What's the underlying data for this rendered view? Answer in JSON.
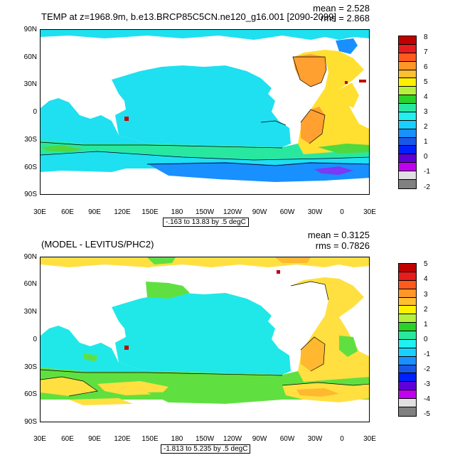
{
  "panel1": {
    "title": "TEMP at z=1968.9m, b.e13.BRCP85C5CN.ne120_g16.001 [2090-2099]",
    "mean": "mean = 2.528",
    "rms": "rms = 2.868",
    "range": "-.163 to 13.83 by .5 degC",
    "colorbar": {
      "labels": [
        "8",
        "7",
        "6",
        "5",
        "4",
        "3",
        "2",
        "1",
        "0",
        "-1",
        "-2"
      ],
      "colors": [
        "#c00000",
        "#e81c1c",
        "#ff5a1e",
        "#ff9628",
        "#ffc030",
        "#fff000",
        "#b4f03c",
        "#28d228",
        "#28e8a0",
        "#20f0f0",
        "#18d0ff",
        "#1890ff",
        "#1858e8",
        "#0020ff",
        "#6000d8",
        "#c000f0",
        "#e0e0e0",
        "#808080"
      ]
    }
  },
  "panel2": {
    "title": "(MODEL - LEVITUS/PHC2)",
    "mean": "mean = 0.3125",
    "rms": "rms = 0.7826",
    "range": "-1.813 to 5.235 by .5 degC",
    "colorbar": {
      "labels": [
        "5",
        "4",
        "3",
        "2",
        "1",
        "0",
        "-1",
        "-2",
        "-3",
        "-4",
        "-5"
      ],
      "colors": [
        "#c00000",
        "#e81c1c",
        "#ff5a1e",
        "#ff9628",
        "#ffc030",
        "#fff000",
        "#b4f03c",
        "#28d228",
        "#28e8a0",
        "#20f0f0",
        "#18d0ff",
        "#1890ff",
        "#1858e8",
        "#0020ff",
        "#6000d8",
        "#c000f0",
        "#e0e0e0",
        "#808080"
      ]
    }
  },
  "axes": {
    "lat_labels": [
      "90N",
      "60N",
      "30N",
      "0",
      "30S",
      "60S",
      "90S"
    ],
    "lon_labels": [
      "30E",
      "60E",
      "90E",
      "120E",
      "150E",
      "180",
      "150W",
      "120W",
      "90W",
      "60W",
      "30W",
      "0",
      "30E"
    ]
  },
  "map_colors": {
    "land": "#ffffff",
    "p1_main": "#1ee0f0",
    "p1_cool": "#28e8a0",
    "p1_warm": "#ffa030",
    "p1_yellow": "#ffe030",
    "p1_blue": "#1890ff",
    "p1_green": "#50d840",
    "p2_main": "#20e8e8",
    "p2_green": "#60e040",
    "p2_yellow": "#ffe040",
    "p2_orange": "#ffb830"
  }
}
